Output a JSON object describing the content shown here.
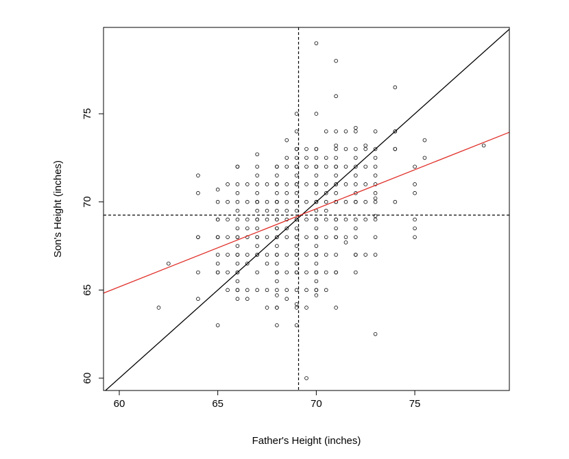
{
  "chart_data": {
    "type": "scatter",
    "title": "",
    "xlabel": "Father's Height (inches)",
    "ylabel": "Son's Height (inches)",
    "xlim": [
      59.2,
      79.8
    ],
    "ylim": [
      59.3,
      79.9
    ],
    "xticks": [
      60,
      65,
      70,
      75
    ],
    "yticks": [
      60,
      65,
      70,
      75
    ],
    "grid": false,
    "legend": "none",
    "colors": {
      "points": "#000000",
      "identity_line": "#000000",
      "regression_line": "#e0302a",
      "mean_lines": "#000000",
      "frame": "#000000"
    },
    "reference_lines": {
      "mean_father_height": 69.1,
      "mean_son_height": 69.25,
      "identity_line": {
        "slope": 1,
        "intercept": 0
      },
      "regression_line": {
        "slope": 0.443,
        "intercept": 38.6
      }
    },
    "points": [
      [
        62,
        64
      ],
      [
        62.5,
        66.5
      ],
      [
        64,
        64.5
      ],
      [
        64,
        66
      ],
      [
        64,
        68
      ],
      [
        64,
        68
      ],
      [
        64,
        70.5
      ],
      [
        64,
        71.5
      ],
      [
        65,
        63
      ],
      [
        65,
        66
      ],
      [
        65,
        66
      ],
      [
        65,
        66.5
      ],
      [
        65,
        67
      ],
      [
        65,
        68
      ],
      [
        65,
        68
      ],
      [
        65,
        68
      ],
      [
        65,
        69
      ],
      [
        65,
        69
      ],
      [
        65,
        70
      ],
      [
        65,
        70.7
      ],
      [
        65.5,
        65
      ],
      [
        65.5,
        66
      ],
      [
        65.5,
        67
      ],
      [
        65.5,
        68
      ],
      [
        65.5,
        69
      ],
      [
        65.5,
        70
      ],
      [
        65.5,
        71
      ],
      [
        66,
        64.5
      ],
      [
        66,
        65
      ],
      [
        66,
        65
      ],
      [
        66,
        65.5
      ],
      [
        66,
        66
      ],
      [
        66,
        66
      ],
      [
        66,
        66.5
      ],
      [
        66,
        67
      ],
      [
        66,
        67
      ],
      [
        66,
        67.5
      ],
      [
        66,
        68
      ],
      [
        66,
        68
      ],
      [
        66,
        68.5
      ],
      [
        66,
        69
      ],
      [
        66,
        69.5
      ],
      [
        66,
        70
      ],
      [
        66,
        70.5
      ],
      [
        66,
        71
      ],
      [
        66,
        72
      ],
      [
        66,
        72
      ],
      [
        66.5,
        64.5
      ],
      [
        66.5,
        65
      ],
      [
        66.5,
        66.5
      ],
      [
        66.5,
        67
      ],
      [
        66.5,
        68
      ],
      [
        66.5,
        68.5
      ],
      [
        66.5,
        69
      ],
      [
        66.5,
        70
      ],
      [
        66.5,
        71
      ],
      [
        67,
        65
      ],
      [
        67,
        66
      ],
      [
        67,
        67
      ],
      [
        67,
        67
      ],
      [
        67,
        67.5
      ],
      [
        67,
        68
      ],
      [
        67,
        68
      ],
      [
        67,
        68.5
      ],
      [
        67,
        69
      ],
      [
        67,
        69
      ],
      [
        67,
        69.5
      ],
      [
        67,
        70
      ],
      [
        67,
        70
      ],
      [
        67,
        70
      ],
      [
        67,
        70.5
      ],
      [
        67,
        71
      ],
      [
        67,
        71.5
      ],
      [
        67,
        72
      ],
      [
        67,
        72.7
      ],
      [
        67.5,
        64
      ],
      [
        67.5,
        65
      ],
      [
        67.5,
        66.5
      ],
      [
        67.5,
        67
      ],
      [
        67.5,
        68
      ],
      [
        67.5,
        69
      ],
      [
        67.5,
        69.5
      ],
      [
        67.5,
        70
      ],
      [
        67.5,
        71
      ],
      [
        68,
        63
      ],
      [
        68,
        64
      ],
      [
        68,
        64
      ],
      [
        68,
        64.7
      ],
      [
        68,
        65
      ],
      [
        68,
        65.5
      ],
      [
        68,
        66
      ],
      [
        68,
        66
      ],
      [
        68,
        66.5
      ],
      [
        68,
        67
      ],
      [
        68,
        67
      ],
      [
        68,
        67.5
      ],
      [
        68,
        68
      ],
      [
        68,
        68
      ],
      [
        68,
        68.5
      ],
      [
        68,
        68.5
      ],
      [
        68,
        69
      ],
      [
        68,
        69
      ],
      [
        68,
        69.5
      ],
      [
        68,
        70
      ],
      [
        68,
        70
      ],
      [
        68,
        70
      ],
      [
        68,
        70.5
      ],
      [
        68,
        71
      ],
      [
        68,
        71
      ],
      [
        68,
        71.5
      ],
      [
        68,
        72
      ],
      [
        68,
        72
      ],
      [
        68.5,
        64.5
      ],
      [
        68.5,
        65
      ],
      [
        68.5,
        66
      ],
      [
        68.5,
        67
      ],
      [
        68.5,
        68
      ],
      [
        68.5,
        68.5
      ],
      [
        68.5,
        69
      ],
      [
        68.5,
        69.5
      ],
      [
        68.5,
        70
      ],
      [
        68.5,
        70.5
      ],
      [
        68.5,
        71
      ],
      [
        68.5,
        72
      ],
      [
        68.5,
        72.5
      ],
      [
        68.5,
        73.5
      ],
      [
        69,
        63
      ],
      [
        69,
        64
      ],
      [
        69,
        64.2
      ],
      [
        69,
        65
      ],
      [
        69,
        66
      ],
      [
        69,
        66
      ],
      [
        69,
        66.5
      ],
      [
        69,
        67
      ],
      [
        69,
        67
      ],
      [
        69,
        67.5
      ],
      [
        69,
        68
      ],
      [
        69,
        68
      ],
      [
        69,
        68.5
      ],
      [
        69,
        69
      ],
      [
        69,
        69
      ],
      [
        69,
        69.5
      ],
      [
        69,
        70
      ],
      [
        69,
        70
      ],
      [
        69,
        70.5
      ],
      [
        69,
        71
      ],
      [
        69,
        71
      ],
      [
        69,
        71.5
      ],
      [
        69,
        72
      ],
      [
        69,
        72
      ],
      [
        69,
        72.5
      ],
      [
        69,
        73
      ],
      [
        69,
        73
      ],
      [
        69,
        74
      ],
      [
        69,
        75
      ],
      [
        69.5,
        60
      ],
      [
        69.5,
        64
      ],
      [
        69.5,
        65
      ],
      [
        69.5,
        66
      ],
      [
        69.5,
        67
      ],
      [
        69.5,
        68
      ],
      [
        69.5,
        69
      ],
      [
        69.5,
        70
      ],
      [
        69.5,
        71
      ],
      [
        69.5,
        72
      ],
      [
        69.5,
        72.5
      ],
      [
        69.5,
        73
      ],
      [
        70,
        64.7
      ],
      [
        70,
        65
      ],
      [
        70,
        65
      ],
      [
        70,
        65.5
      ],
      [
        70,
        66
      ],
      [
        70,
        66
      ],
      [
        70,
        66.5
      ],
      [
        70,
        67
      ],
      [
        70,
        67
      ],
      [
        70,
        67.5
      ],
      [
        70,
        68
      ],
      [
        70,
        68
      ],
      [
        70,
        68.5
      ],
      [
        70,
        69
      ],
      [
        70,
        69
      ],
      [
        70,
        69.5
      ],
      [
        70,
        70
      ],
      [
        70,
        70
      ],
      [
        70,
        70
      ],
      [
        70,
        70.5
      ],
      [
        70,
        71
      ],
      [
        70,
        71
      ],
      [
        70,
        71.5
      ],
      [
        70,
        72
      ],
      [
        70,
        72
      ],
      [
        70,
        72.5
      ],
      [
        70,
        73
      ],
      [
        70,
        73
      ],
      [
        70,
        75
      ],
      [
        70,
        79
      ],
      [
        70.5,
        65
      ],
      [
        70.5,
        66
      ],
      [
        70.5,
        67
      ],
      [
        70.5,
        68
      ],
      [
        70.5,
        69
      ],
      [
        70.5,
        69.5
      ],
      [
        70.5,
        70
      ],
      [
        70.5,
        70.5
      ],
      [
        70.5,
        71
      ],
      [
        70.5,
        72
      ],
      [
        70.5,
        72.5
      ],
      [
        70.5,
        74
      ],
      [
        71,
        64
      ],
      [
        71,
        66
      ],
      [
        71,
        66
      ],
      [
        71,
        67
      ],
      [
        71,
        68
      ],
      [
        71,
        68
      ],
      [
        71,
        68.5
      ],
      [
        71,
        69
      ],
      [
        71,
        69
      ],
      [
        71,
        70
      ],
      [
        71,
        70
      ],
      [
        71,
        70.5
      ],
      [
        71,
        71
      ],
      [
        71,
        71
      ],
      [
        71,
        71.5
      ],
      [
        71,
        72
      ],
      [
        71,
        72
      ],
      [
        71,
        72.5
      ],
      [
        71,
        73
      ],
      [
        71,
        73.2
      ],
      [
        71,
        74
      ],
      [
        71,
        76
      ],
      [
        71,
        78
      ],
      [
        71.5,
        67.7
      ],
      [
        71.5,
        68
      ],
      [
        71.5,
        69
      ],
      [
        71.5,
        70
      ],
      [
        71.5,
        71
      ],
      [
        71.5,
        72
      ],
      [
        71.5,
        73
      ],
      [
        71.5,
        74
      ],
      [
        72,
        66
      ],
      [
        72,
        67
      ],
      [
        72,
        67
      ],
      [
        72,
        68
      ],
      [
        72,
        68.5
      ],
      [
        72,
        69
      ],
      [
        72,
        70
      ],
      [
        72,
        70
      ],
      [
        72,
        70.5
      ],
      [
        72,
        71
      ],
      [
        72,
        71.5
      ],
      [
        72,
        72
      ],
      [
        72,
        72.5
      ],
      [
        72,
        73
      ],
      [
        72,
        74
      ],
      [
        72,
        74.2
      ],
      [
        72.5,
        67
      ],
      [
        72.5,
        69
      ],
      [
        72.5,
        70
      ],
      [
        72.5,
        71
      ],
      [
        72.5,
        72
      ],
      [
        72.5,
        73
      ],
      [
        72.5,
        73.2
      ],
      [
        73,
        62.5
      ],
      [
        73,
        67
      ],
      [
        73,
        68
      ],
      [
        73,
        69
      ],
      [
        73,
        69.2
      ],
      [
        73,
        70
      ],
      [
        73,
        70.2
      ],
      [
        73,
        70.5
      ],
      [
        73,
        71
      ],
      [
        73,
        71.5
      ],
      [
        73,
        72
      ],
      [
        73,
        72.5
      ],
      [
        73,
        73
      ],
      [
        73,
        74
      ],
      [
        74,
        70
      ],
      [
        74,
        73
      ],
      [
        74,
        73
      ],
      [
        74,
        74
      ],
      [
        74,
        74
      ],
      [
        74,
        76.5
      ],
      [
        75,
        68
      ],
      [
        75,
        68.5
      ],
      [
        75,
        69
      ],
      [
        75,
        70.5
      ],
      [
        75,
        71
      ],
      [
        75,
        72
      ],
      [
        75.5,
        72.5
      ],
      [
        75.5,
        73.5
      ],
      [
        78.5,
        73.2
      ]
    ]
  }
}
